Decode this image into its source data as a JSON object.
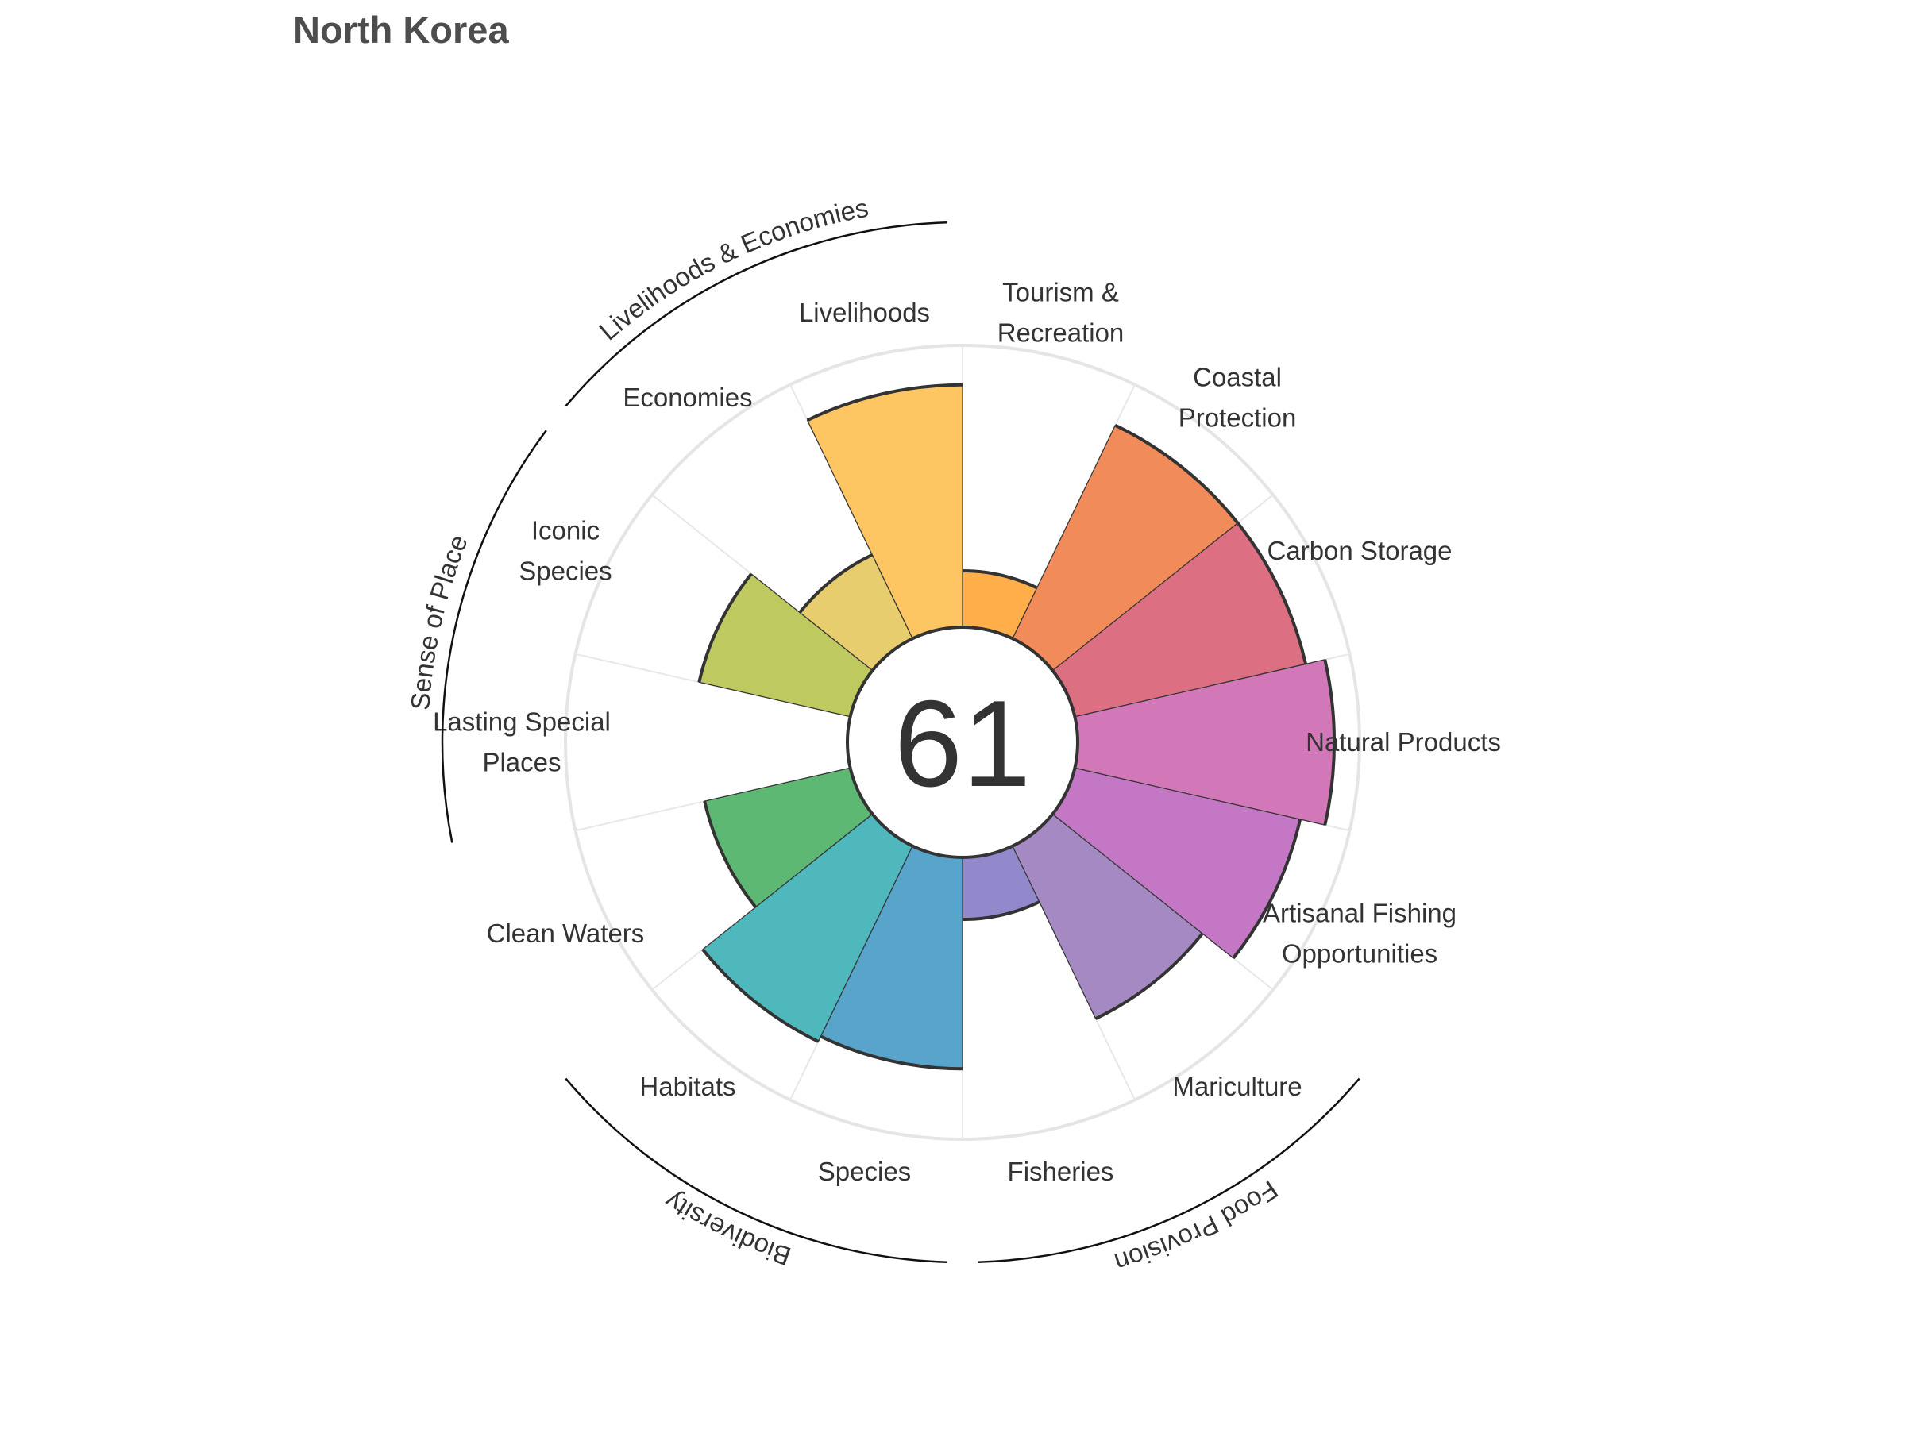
{
  "chart_data": {
    "type": "flower",
    "title": "North Korea",
    "score": "61",
    "max_value": 100,
    "petals": [
      {
        "label": [
          "Fisheries"
        ],
        "value": 22,
        "color": "#9289cd"
      },
      {
        "label": [
          "Mariculture"
        ],
        "value": 68,
        "color": "#a589c2"
      },
      {
        "label": [
          "Artisanal Fishing",
          "Opportunities"
        ],
        "value": 82,
        "color": "#c377c5"
      },
      {
        "label": [
          "Natural Products"
        ],
        "value": 91,
        "color": "#d278b8"
      },
      {
        "label": [
          "Carbon Storage"
        ],
        "value": 84,
        "color": "#dc6f81"
      },
      {
        "label": [
          "Coastal",
          "Protection"
        ],
        "value": 84,
        "color": "#f28b5a"
      },
      {
        "label": [
          "Tourism &",
          "Recreation"
        ],
        "value": 20,
        "color": "#ffae4a"
      },
      {
        "label": [
          "Livelihoods"
        ],
        "value": 86,
        "color": "#fec663"
      },
      {
        "label": [
          "Economies"
        ],
        "value": 33,
        "color": "#e8cd6e"
      },
      {
        "label": [
          "Iconic",
          "Species"
        ],
        "value": 55,
        "color": "#bec95f"
      },
      {
        "label": [
          "Lasting Special",
          "Places"
        ],
        "value": 0,
        "color": "#9dc85f"
      },
      {
        "label": [
          "Clean Waters"
        ],
        "value": 53,
        "color": "#5db873"
      },
      {
        "label": [
          "Habitats"
        ],
        "value": 77,
        "color": "#4eb8bd"
      },
      {
        "label": [
          "Species"
        ],
        "value": 75,
        "color": "#58a4ca"
      }
    ],
    "groups": [
      {
        "name": "Food Provision",
        "from_petal": 0,
        "to_petal": 1
      },
      {
        "name": "Biodiversity",
        "from_petal": 12,
        "to_petal": 13
      },
      {
        "name": "Sense of Place",
        "from_petal": 9,
        "to_petal": 10
      },
      {
        "name": "Livelihoods & Economies",
        "from_petal": 7,
        "to_petal": 8
      }
    ]
  }
}
